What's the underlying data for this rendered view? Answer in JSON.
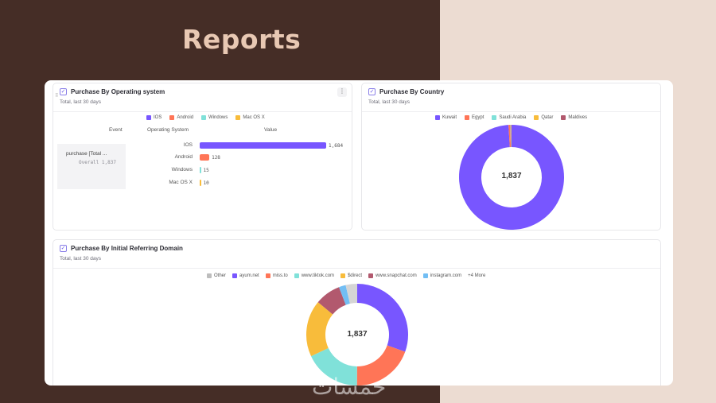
{
  "page": {
    "title": "Reports",
    "watermark": "خمسات"
  },
  "card_os": {
    "title": "Purchase By Operating system",
    "subtitle": "Total, last 30 days",
    "legend": [
      {
        "label": "IOS",
        "color": "#7856ff"
      },
      {
        "label": "Android",
        "color": "#ff7557"
      },
      {
        "label": "Windows",
        "color": "#80e1d9"
      },
      {
        "label": "Mac OS X",
        "color": "#f8bc3b"
      }
    ],
    "columns": {
      "event": "Event",
      "os": "Operating System",
      "value": "Value"
    },
    "event_name": "purchase [Total ...",
    "event_overall": "Overall  1,837",
    "menu_glyph": "⋮"
  },
  "card_country": {
    "title": "Purchase By Country",
    "subtitle": "Total, last 30 days",
    "legend": [
      {
        "label": "Kuwait",
        "color": "#7856ff"
      },
      {
        "label": "Egypt",
        "color": "#ff7557"
      },
      {
        "label": "Saudi Arabia",
        "color": "#80e1d9"
      },
      {
        "label": "Qatar",
        "color": "#f8bc3b"
      },
      {
        "label": "Maldives",
        "color": "#b2596e"
      }
    ],
    "total": "1,837"
  },
  "card_domain": {
    "title": "Purchase By Initial Referring Domain",
    "subtitle": "Total, last 30 days",
    "legend": [
      {
        "label": "Other",
        "color": "#bdbdbd"
      },
      {
        "label": "ayum.net",
        "color": "#7856ff"
      },
      {
        "label": "miss.to",
        "color": "#ff7557"
      },
      {
        "label": "www.tiktok.com",
        "color": "#80e1d9"
      },
      {
        "label": "$direct",
        "color": "#f8bc3b"
      },
      {
        "label": "www.snapchat.com",
        "color": "#b2596e"
      },
      {
        "label": "instagram.com",
        "color": "#72bef4"
      }
    ],
    "more": "+4 More",
    "total": "1,837"
  },
  "chart_data": [
    {
      "type": "bar",
      "title": "Purchase By Operating system",
      "orientation": "horizontal",
      "categories": [
        "IOS",
        "Android",
        "Windows",
        "Mac OS X"
      ],
      "values": [
        1684,
        128,
        15,
        10
      ],
      "value_labels": [
        "1,684",
        "128",
        "15",
        "10"
      ],
      "colors": [
        "#7856ff",
        "#ff7557",
        "#80e1d9",
        "#f8bc3b"
      ],
      "xlim": [
        0,
        1684
      ]
    },
    {
      "type": "pie",
      "title": "Purchase By Country",
      "labels": [
        "Kuwait",
        "Egypt",
        "Saudi Arabia",
        "Qatar",
        "Maldives"
      ],
      "values": [
        1820,
        10,
        3,
        2,
        2
      ],
      "colors": [
        "#7856ff",
        "#ff7557",
        "#80e1d9",
        "#f8bc3b",
        "#b2596e"
      ]
    },
    {
      "type": "pie",
      "title": "Purchase By Initial Referring Domain",
      "labels": [
        "ayum.net",
        "miss.to",
        "www.tiktok.com",
        "$direct",
        "www.snapchat.com",
        "instagram.com",
        "Other"
      ],
      "values": [
        560,
        360,
        330,
        330,
        150,
        40,
        67
      ],
      "colors": [
        "#7856ff",
        "#ff7557",
        "#80e1d9",
        "#f8bc3b",
        "#b2596e",
        "#72bef4",
        "#d5d5d5"
      ]
    }
  ]
}
